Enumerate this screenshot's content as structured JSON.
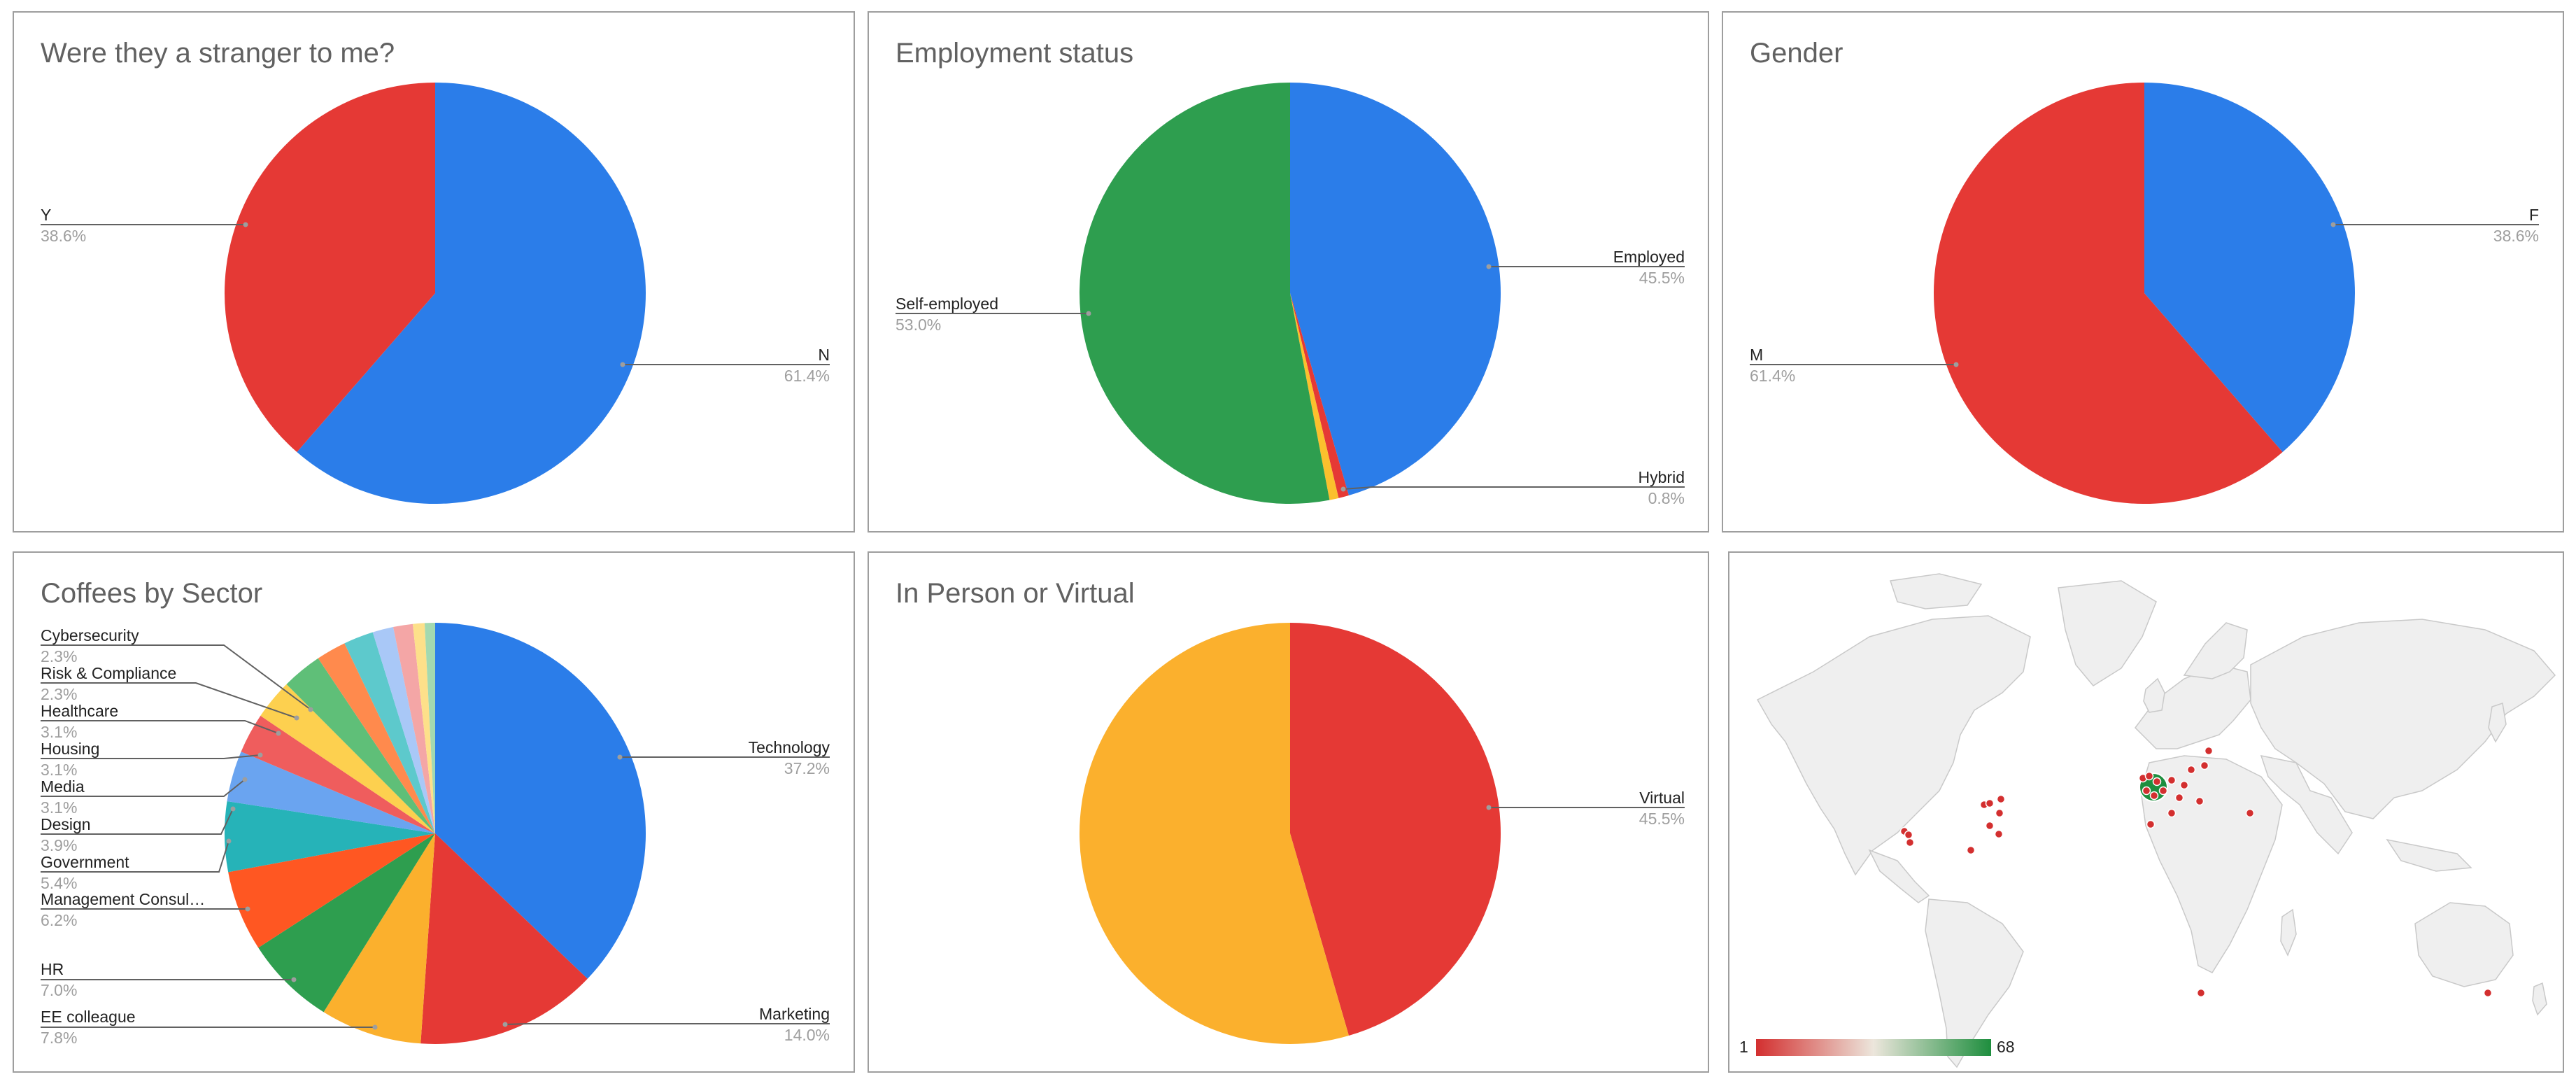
{
  "chart_data": [
    {
      "type": "pie",
      "title": "Were they a stranger to me?",
      "slices": [
        {
          "label": "N",
          "pct": "61.4%",
          "value": 61.4,
          "color": "#2b7de9"
        },
        {
          "label": "Y",
          "pct": "38.6%",
          "value": 38.6,
          "color": "#e53935"
        }
      ]
    },
    {
      "type": "pie",
      "title": "Employment status",
      "slices": [
        {
          "label": "Employed",
          "pct": "45.5%",
          "value": 45.5,
          "color": "#2b7de9"
        },
        {
          "label": "Hybrid",
          "pct": "0.8%",
          "value": 0.8,
          "color": "#e53935"
        },
        {
          "label": "",
          "pct": "",
          "value": 0.7,
          "color": "#fbc02d"
        },
        {
          "label": "Self-employed",
          "pct": "53.0%",
          "value": 53.0,
          "color": "#2e9e4f"
        }
      ]
    },
    {
      "type": "pie",
      "title": "Gender",
      "slices": [
        {
          "label": "F",
          "pct": "38.6%",
          "value": 38.6,
          "color": "#2b7de9"
        },
        {
          "label": "M",
          "pct": "61.4%",
          "value": 61.4,
          "color": "#e53935"
        }
      ]
    },
    {
      "type": "pie",
      "title": "Coffees by Sector",
      "slices": [
        {
          "label": "Technology",
          "pct": "37.2%",
          "value": 37.2,
          "color": "#2b7de9"
        },
        {
          "label": "Marketing",
          "pct": "14.0%",
          "value": 14.0,
          "color": "#e53935"
        },
        {
          "label": "EE colleague",
          "pct": "7.8%",
          "value": 7.8,
          "color": "#fbb02d"
        },
        {
          "label": "HR",
          "pct": "7.0%",
          "value": 7.0,
          "color": "#2e9e4f"
        },
        {
          "label": "Management Consul…",
          "pct": "6.2%",
          "value": 6.2,
          "color": "#ff5722"
        },
        {
          "label": "Government",
          "pct": "5.4%",
          "value": 5.4,
          "color": "#26b3b8"
        },
        {
          "label": "Design",
          "pct": "3.9%",
          "value": 3.9,
          "color": "#6aa4f0"
        },
        {
          "label": "Media",
          "pct": "3.1%",
          "value": 3.1,
          "color": "#ef5d5d"
        },
        {
          "label": "Housing",
          "pct": "3.1%",
          "value": 3.1,
          "color": "#fdd04f"
        },
        {
          "label": "Healthcare",
          "pct": "3.1%",
          "value": 3.1,
          "color": "#5fbf78"
        },
        {
          "label": "Risk & Compliance",
          "pct": "2.3%",
          "value": 2.3,
          "color": "#ff8a4d"
        },
        {
          "label": "Cybersecurity",
          "pct": "2.3%",
          "value": 2.3,
          "color": "#5dc9cc"
        },
        {
          "label": "",
          "pct": "",
          "value": 1.6,
          "color": "#a9c8f7"
        },
        {
          "label": "",
          "pct": "",
          "value": 1.5,
          "color": "#f4a6a6"
        },
        {
          "label": "",
          "pct": "",
          "value": 0.9,
          "color": "#fde08a"
        },
        {
          "label": "",
          "pct": "",
          "value": 0.8,
          "color": "#a3d9b0"
        }
      ]
    },
    {
      "type": "pie",
      "title": "In Person or Virtual",
      "slices": [
        {
          "label": "Virtual",
          "pct": "45.5%",
          "value": 45.5,
          "color": "#e53935"
        },
        {
          "label": "",
          "pct": "",
          "value": 54.5,
          "color": "#fbb02d"
        }
      ]
    },
    {
      "type": "geo",
      "title": "",
      "legend": {
        "min": "1",
        "max": "68",
        "colors": [
          "#d32f2f",
          "#ece6dc",
          "#1e8e3e"
        ]
      },
      "background": "#ffffff",
      "land_color": "#efefef",
      "marker_color": "#d32f2f",
      "highlight_color": "#1e8e3e"
    }
  ]
}
